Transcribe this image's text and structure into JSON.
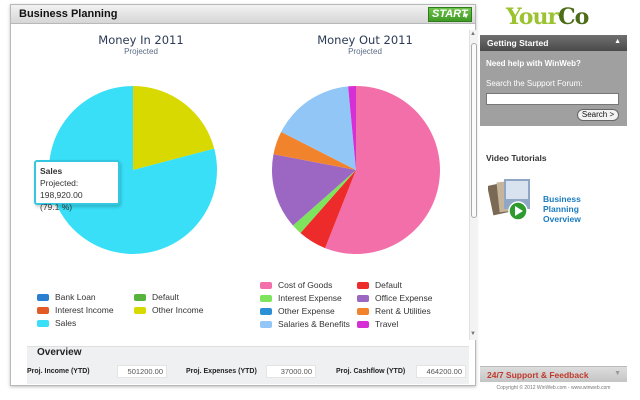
{
  "panel": {
    "title": "Business Planning",
    "start_label": "START",
    "start_arrow": "▾"
  },
  "chart_data": [
    {
      "type": "pie",
      "title": "Money In 2011",
      "subtitle": "Projected",
      "series": [
        {
          "name": "Bank Loan",
          "value": 0,
          "color": "#2a7fd0"
        },
        {
          "name": "Default",
          "value": 0,
          "color": "#58b33c"
        },
        {
          "name": "Interest Income",
          "value": 0,
          "color": "#e25a26"
        },
        {
          "name": "Other Income",
          "value": 20.9,
          "color": "#d7d900"
        },
        {
          "name": "Sales",
          "value": 79.1,
          "color": "#38dff7"
        }
      ],
      "tooltip": {
        "label": "Sales",
        "line1": "Projected: 198,920.00",
        "line2": "(79.1 %)"
      }
    },
    {
      "type": "pie",
      "title": "Money Out 2011",
      "subtitle": "Projected",
      "series": [
        {
          "name": "Cost of Goods",
          "value": 56.0,
          "color": "#f36fa9"
        },
        {
          "name": "Default",
          "value": 5.5,
          "color": "#ee2b2b"
        },
        {
          "name": "Interest Expense",
          "value": 2.0,
          "color": "#7ee35d"
        },
        {
          "name": "Office Expense",
          "value": 14.5,
          "color": "#9b67c2"
        },
        {
          "name": "Other Expense",
          "value": 0,
          "color": "#2d8fd6"
        },
        {
          "name": "Rent & Utilities",
          "value": 4.5,
          "color": "#f2832d"
        },
        {
          "name": "Salaries & Benefits",
          "value": 16.0,
          "color": "#92c6f7"
        },
        {
          "name": "Travel",
          "value": 1.5,
          "color": "#d62fd6"
        }
      ]
    }
  ],
  "overview": {
    "title": "Overview",
    "income_label": "Proj. Income (YTD)",
    "income_value": "501200.00",
    "expenses_label": "Proj. Expenses (YTD)",
    "expenses_value": "37000.00",
    "cashflow_label": "Proj. Cashflow (YTD)",
    "cashflow_value": "464200.00"
  },
  "sidebar": {
    "logo_y": "Your",
    "logo_co": "Co",
    "getting_started": "Getting Started",
    "collapse_arrow": "▲",
    "need_help": "Need help with WinWeb?",
    "search_label": "Search the Support Forum:",
    "search_button": "Search >",
    "video_title": "Video Tutorials",
    "video_link": "Business Planning Overview",
    "support_label": "24/7 Support & Feedback",
    "expand_arrow": "▼",
    "copyright": "Copyright © 2012 WinWeb.com - www.winweb.com"
  }
}
